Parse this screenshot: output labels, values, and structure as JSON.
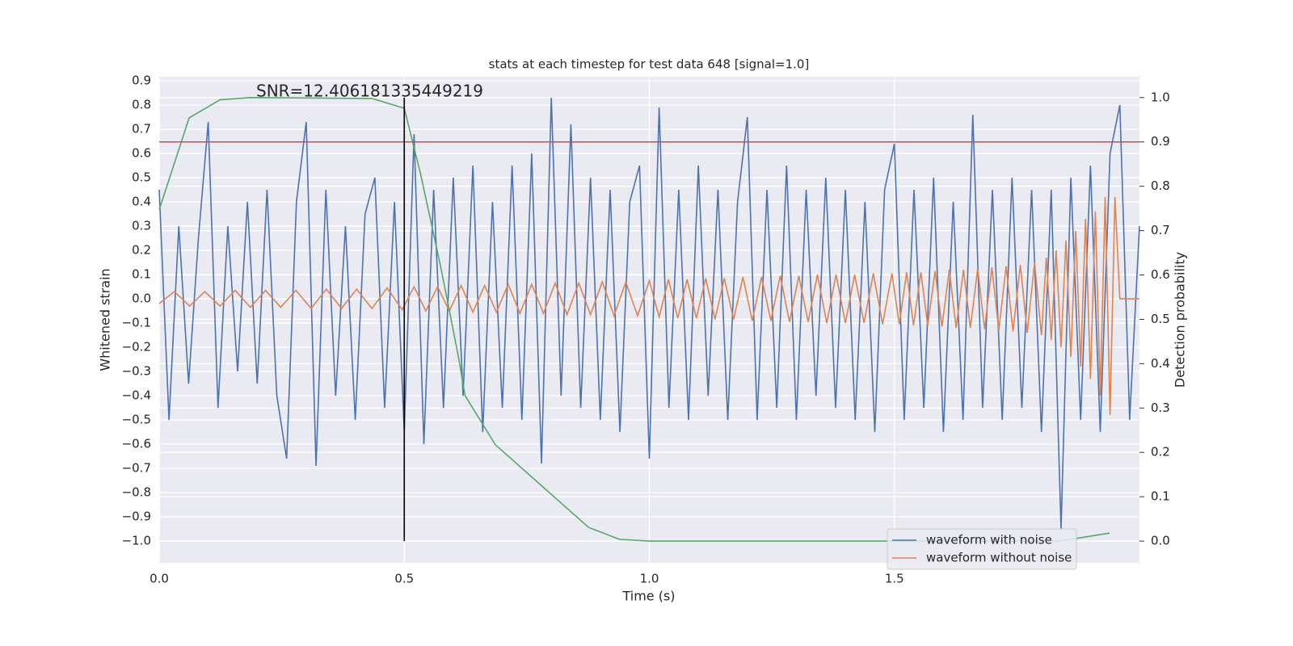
{
  "chart_data": {
    "type": "line",
    "title": "stats at each timestep for test data 648 [signal=1.0]",
    "annotation": "SNR=12.406181335449219",
    "xlabel": "Time (s)",
    "ylabel": "Whitened strain",
    "y2label": "Detection probability",
    "xlim": [
      0,
      2.0
    ],
    "ylim": [
      -1.09,
      0.917
    ],
    "y2lim": [
      -0.049,
      1.047
    ],
    "grid": true,
    "legend": "lower right",
    "xticks": [
      {
        "value": 0,
        "label": "0.0"
      },
      {
        "value": 0.5,
        "label": "0.5"
      },
      {
        "value": 1,
        "label": "1.0"
      },
      {
        "value": 1.5,
        "label": "1.5"
      }
    ],
    "yticks": [
      {
        "value": -1.0,
        "label": "−1.0"
      },
      {
        "value": -0.9,
        "label": "−0.9"
      },
      {
        "value": -0.8,
        "label": "−0.8"
      },
      {
        "value": -0.7,
        "label": "−0.7"
      },
      {
        "value": -0.6,
        "label": "−0.6"
      },
      {
        "value": -0.5,
        "label": "−0.5"
      },
      {
        "value": -0.4,
        "label": "−0.4"
      },
      {
        "value": -0.3,
        "label": "−0.3"
      },
      {
        "value": -0.2,
        "label": "−0.2"
      },
      {
        "value": -0.1,
        "label": "−0.1"
      },
      {
        "value": 0,
        "label": "0.0"
      },
      {
        "value": 0.1,
        "label": "0.1"
      },
      {
        "value": 0.2,
        "label": "0.2"
      },
      {
        "value": 0.3,
        "label": "0.3"
      },
      {
        "value": 0.4,
        "label": "0.4"
      },
      {
        "value": 0.5,
        "label": "0.5"
      },
      {
        "value": 0.6,
        "label": "0.6"
      },
      {
        "value": 0.7,
        "label": "0.7"
      },
      {
        "value": 0.8,
        "label": "0.8"
      },
      {
        "value": 0.9,
        "label": "0.9"
      }
    ],
    "y2ticks": [
      {
        "value": 0,
        "label": "0.0"
      },
      {
        "value": 0.1,
        "label": "0.1"
      },
      {
        "value": 0.2,
        "label": "0.2"
      },
      {
        "value": 0.3,
        "label": "0.3"
      },
      {
        "value": 0.4,
        "label": "0.4"
      },
      {
        "value": 0.5,
        "label": "0.5"
      },
      {
        "value": 0.6,
        "label": "0.6"
      },
      {
        "value": 0.7,
        "label": "0.7"
      },
      {
        "value": 0.8,
        "label": "0.8"
      },
      {
        "value": 0.9,
        "label": "0.9"
      },
      {
        "value": 1,
        "label": "1.0"
      }
    ],
    "hline": {
      "y": 0.9,
      "axis": "y2",
      "color": "#c44e52"
    },
    "vline": {
      "x": 0.5,
      "ymin": 0,
      "ymax": 1,
      "axis": "y2",
      "color": "#000000"
    },
    "series": [
      {
        "name": "waveform with noise",
        "color": "#4c72b0",
        "x": [
          0,
          0.02,
          0.04,
          0.06,
          0.08,
          0.1,
          0.12,
          0.14,
          0.16,
          0.18,
          0.2,
          0.22,
          0.24,
          0.26,
          0.28,
          0.3,
          0.32,
          0.34,
          0.36,
          0.38,
          0.4,
          0.42,
          0.44,
          0.46,
          0.48,
          0.5,
          0.52,
          0.54,
          0.56,
          0.58,
          0.6,
          0.62,
          0.64,
          0.66,
          0.68,
          0.7,
          0.72,
          0.74,
          0.76,
          0.78,
          0.8,
          0.82,
          0.84,
          0.86,
          0.88,
          0.9,
          0.92,
          0.94,
          0.96,
          0.98,
          1.0,
          1.02,
          1.04,
          1.06,
          1.08,
          1.1,
          1.12,
          1.14,
          1.16,
          1.18,
          1.2,
          1.22,
          1.24,
          1.26,
          1.28,
          1.3,
          1.32,
          1.34,
          1.36,
          1.38,
          1.4,
          1.42,
          1.44,
          1.46,
          1.48,
          1.5,
          1.52,
          1.54,
          1.56,
          1.58,
          1.6,
          1.62,
          1.64,
          1.66,
          1.68,
          1.7,
          1.72,
          1.74,
          1.76,
          1.78,
          1.8,
          1.82,
          1.84,
          1.86,
          1.88,
          1.9,
          1.92,
          1.94,
          1.96,
          1.98,
          2.0
        ],
        "values": [
          0.45,
          -0.5,
          0.3,
          -0.35,
          0.25,
          0.73,
          -0.45,
          0.3,
          -0.3,
          0.4,
          -0.35,
          0.45,
          -0.4,
          -0.66,
          0.4,
          0.73,
          -0.69,
          0.45,
          -0.4,
          0.3,
          -0.5,
          0.35,
          0.5,
          -0.45,
          0.4,
          -0.55,
          0.68,
          -0.6,
          0.45,
          -0.45,
          0.5,
          -0.4,
          0.55,
          -0.55,
          0.4,
          -0.45,
          0.55,
          -0.5,
          0.6,
          -0.68,
          0.83,
          -0.4,
          0.72,
          -0.45,
          0.5,
          -0.5,
          0.45,
          -0.55,
          0.4,
          0.55,
          -0.66,
          0.79,
          -0.45,
          0.45,
          -0.5,
          0.55,
          -0.4,
          0.45,
          -0.5,
          0.4,
          0.75,
          -0.5,
          0.45,
          -0.45,
          0.55,
          -0.5,
          0.45,
          -0.4,
          0.5,
          -0.45,
          0.45,
          -0.5,
          0.4,
          -0.55,
          0.45,
          0.64,
          -0.5,
          0.45,
          -0.45,
          0.5,
          -0.55,
          0.4,
          -0.5,
          0.76,
          -0.45,
          0.45,
          -0.5,
          0.5,
          -0.45,
          0.45,
          -0.55,
          0.45,
          -0.95,
          0.5,
          -0.5,
          0.55,
          -0.55,
          0.6,
          0.8,
          -0.5,
          0.3
        ]
      },
      {
        "name": "waveform without noise",
        "color": "#dd8452",
        "x": [
          0,
          0.031,
          0.062,
          0.093,
          0.124,
          0.155,
          0.186,
          0.217,
          0.248,
          0.279,
          0.31,
          0.341,
          0.372,
          0.403,
          0.434,
          0.465,
          0.496,
          0.52,
          0.544,
          0.568,
          0.592,
          0.616,
          0.64,
          0.664,
          0.688,
          0.712,
          0.736,
          0.76,
          0.784,
          0.808,
          0.832,
          0.856,
          0.88,
          0.904,
          0.928,
          0.952,
          0.976,
          1.0,
          1.02,
          1.039,
          1.058,
          1.077,
          1.096,
          1.115,
          1.134,
          1.153,
          1.172,
          1.191,
          1.21,
          1.229,
          1.248,
          1.267,
          1.286,
          1.305,
          1.324,
          1.343,
          1.362,
          1.381,
          1.4,
          1.419,
          1.438,
          1.457,
          1.476,
          1.495,
          1.51,
          1.525,
          1.539,
          1.554,
          1.568,
          1.583,
          1.597,
          1.612,
          1.626,
          1.641,
          1.655,
          1.67,
          1.684,
          1.699,
          1.713,
          1.728,
          1.742,
          1.757,
          1.771,
          1.786,
          1.8,
          1.81,
          1.82,
          1.83,
          1.84,
          1.85,
          1.86,
          1.87,
          1.88,
          1.89,
          1.9,
          1.91,
          1.92,
          1.93,
          1.94,
          1.95,
          1.96,
          1.98,
          2.0
        ],
        "values": [
          -0.02,
          0.03,
          -0.03,
          0.03,
          -0.03,
          0.035,
          -0.035,
          0.035,
          -0.035,
          0.035,
          -0.04,
          0.04,
          -0.04,
          0.04,
          -0.04,
          0.045,
          -0.045,
          0.05,
          -0.05,
          0.05,
          -0.05,
          0.055,
          -0.055,
          0.055,
          -0.055,
          0.06,
          -0.06,
          0.06,
          -0.06,
          0.065,
          -0.065,
          0.065,
          -0.065,
          0.07,
          -0.07,
          0.07,
          -0.07,
          0.075,
          -0.075,
          0.08,
          -0.08,
          0.08,
          -0.08,
          0.085,
          -0.085,
          0.085,
          -0.085,
          0.09,
          -0.09,
          0.09,
          -0.09,
          0.095,
          -0.095,
          0.095,
          -0.095,
          0.1,
          -0.1,
          0.1,
          -0.1,
          0.1,
          -0.1,
          0.105,
          -0.105,
          0.105,
          -0.105,
          0.11,
          -0.11,
          0.11,
          -0.11,
          0.115,
          -0.115,
          0.12,
          -0.12,
          0.12,
          -0.12,
          0.125,
          -0.125,
          0.13,
          -0.13,
          0.135,
          -0.135,
          0.14,
          -0.14,
          0.15,
          -0.15,
          0.17,
          -0.17,
          0.2,
          -0.2,
          0.24,
          -0.24,
          0.28,
          -0.28,
          0.33,
          -0.33,
          0.36,
          -0.4,
          0.42,
          -0.48,
          0.42,
          0,
          0,
          0
        ]
      },
      {
        "color": "#55a868",
        "axis": "y2",
        "x": [
          0,
          0.061,
          0.124,
          0.186,
          0.434,
          0.5,
          0.533,
          0.574,
          0.61,
          0.624,
          0.686,
          0.876,
          0.939,
          1.0,
          1.837,
          1.939
        ],
        "values": [
          0.747,
          0.954,
          0.995,
          1.0,
          0.998,
          0.976,
          0.829,
          0.62,
          0.419,
          0.328,
          0.217,
          0.031,
          0.004,
          0.0,
          0.0,
          0.018
        ]
      }
    ]
  }
}
